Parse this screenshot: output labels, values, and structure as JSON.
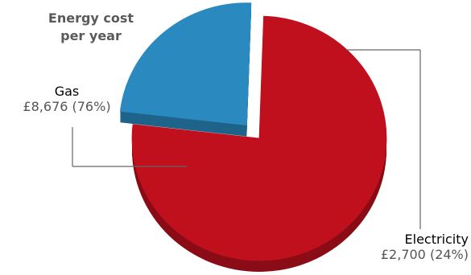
{
  "chart_data": {
    "type": "pie",
    "title_line1": "Energy cost",
    "title_line2": "per year",
    "slices": [
      {
        "label": "Gas",
        "value": 8676,
        "value_text": "£8,676 (76%)",
        "percent": 76,
        "color": "#c0101e",
        "exploded": false
      },
      {
        "label": "Electricity",
        "value": 2700,
        "value_text": "£2,700 (24%)",
        "percent": 24,
        "color": "#2a8abf",
        "exploded": true
      }
    ],
    "legend": "none"
  }
}
